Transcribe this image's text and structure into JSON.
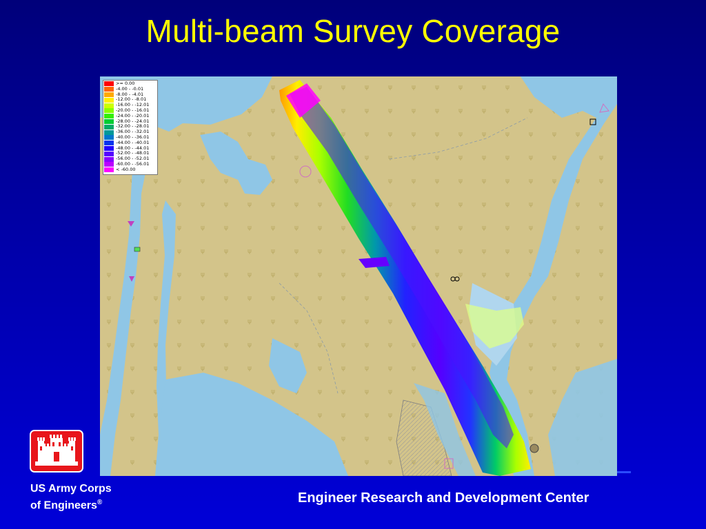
{
  "slide": {
    "title": "Multi-beam Survey Coverage",
    "footer_center": "Engineer Research and Development Center",
    "org_line1": "US Army Corps",
    "org_line2": "of Engineers",
    "org_mark": "®"
  },
  "legend": {
    "entries": [
      {
        "label": ">= 0.00",
        "color": "#ff0000"
      },
      {
        "label": "-4.00 - -0.01",
        "color": "#ff6600"
      },
      {
        "label": "-8.00 - -4.01",
        "color": "#ffaa00"
      },
      {
        "label": "-12.00 - -8.01",
        "color": "#ffee00"
      },
      {
        "label": "-16.00 - -12.01",
        "color": "#ccff00"
      },
      {
        "label": "-20.00 - -16.01",
        "color": "#88ff00"
      },
      {
        "label": "-24.00 - -20.01",
        "color": "#33ee00"
      },
      {
        "label": "-28.00 - -24.01",
        "color": "#00cc33"
      },
      {
        "label": "-32.00 - -28.01",
        "color": "#00aa66"
      },
      {
        "label": "-36.00 - -32.01",
        "color": "#009999"
      },
      {
        "label": "-40.00 - -36.01",
        "color": "#0077cc"
      },
      {
        "label": "-44.00 - -40.01",
        "color": "#0033ee"
      },
      {
        "label": "-48.00 - -44.01",
        "color": "#2200ff"
      },
      {
        "label": "-52.00 - -48.01",
        "color": "#5500ff"
      },
      {
        "label": "-56.00 - -52.01",
        "color": "#8800ff"
      },
      {
        "label": "-60.00 - -56.01",
        "color": "#bb00ff"
      },
      {
        "label": "< -60.00",
        "color": "#ff00ff"
      }
    ]
  },
  "colors": {
    "land": "#d3c48a",
    "water": "#8fc6e6",
    "title": "#ffff00",
    "logo": "#e8161b"
  }
}
